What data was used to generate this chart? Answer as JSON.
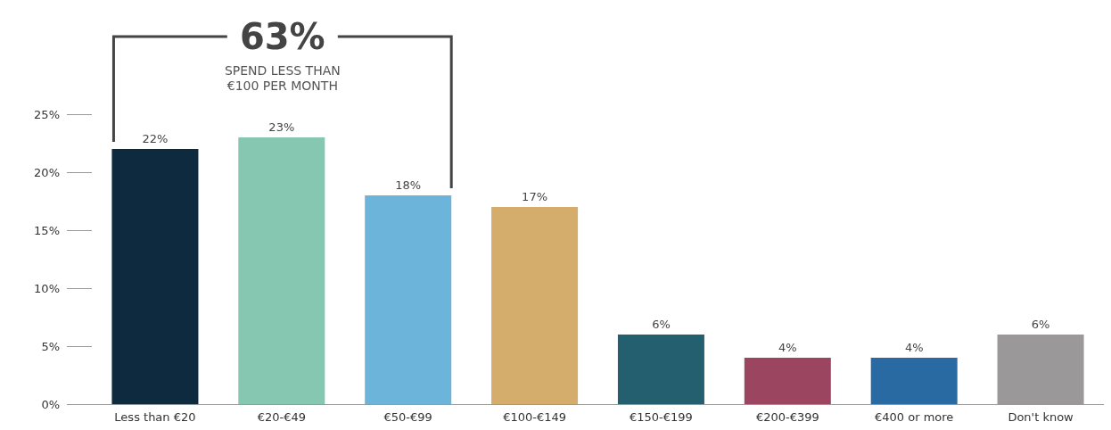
{
  "chart_data": {
    "type": "bar",
    "categories": [
      "Less than €20",
      "€20-€49",
      "€50-€99",
      "€100-€149",
      "€150-€199",
      "€200-€399",
      "€400 or more",
      "Don't know"
    ],
    "values": [
      22,
      23,
      18,
      17,
      6,
      4,
      4,
      6
    ],
    "colors": [
      "#0d2a3e",
      "#85c7b0",
      "#6cb4d9",
      "#d4ac6b",
      "#235f6e",
      "#9b4560",
      "#2a6aa3",
      "#9a9899"
    ],
    "value_labels": [
      "22%",
      "23%",
      "18%",
      "17%",
      "6%",
      "4%",
      "4%",
      "6%"
    ],
    "ylim": [
      0,
      25
    ],
    "yticks": [
      {
        "value": 0,
        "label": "0%"
      },
      {
        "value": 5,
        "label": "5%"
      },
      {
        "value": 10,
        "label": "10%"
      },
      {
        "value": 15,
        "label": "15%"
      },
      {
        "value": 20,
        "label": "20%"
      },
      {
        "value": 25,
        "label": "25%"
      }
    ],
    "annotations": [
      "63%",
      "SPEND LESS THAN\n€100 PER MONTH"
    ]
  }
}
